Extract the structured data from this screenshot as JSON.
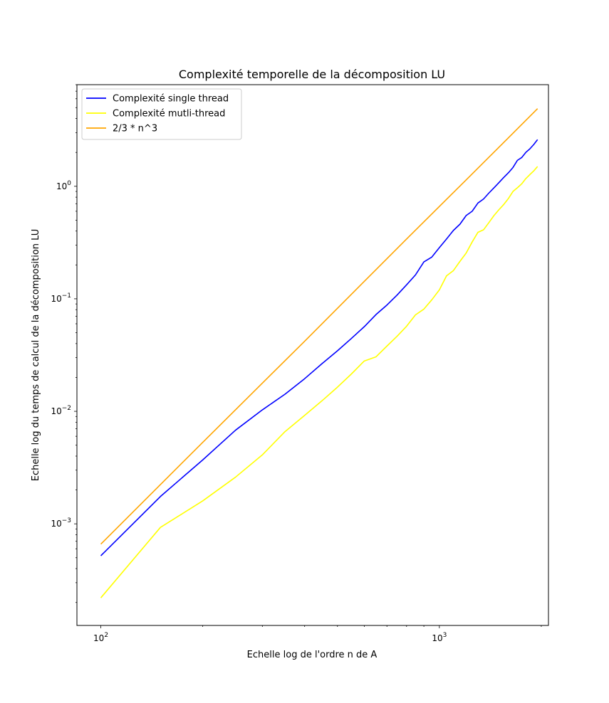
{
  "chart_data": {
    "type": "line",
    "title": "Complexité temporelle de la décomposition LU",
    "xlabel": "Echelle log de l'ordre n de A",
    "ylabel": "Echelle log du temps de calcul de la décomposition LU",
    "xscale": "log",
    "yscale": "log",
    "xlim": [
      85,
      2100
    ],
    "ylim": [
      0.000125,
      8
    ],
    "x_ticks": [
      {
        "base": "10",
        "exp": "2",
        "value": 100
      },
      {
        "base": "10",
        "exp": "3",
        "value": 1000
      }
    ],
    "y_ticks": [
      {
        "base": "10",
        "exp": "−3",
        "value": 0.001
      },
      {
        "base": "10",
        "exp": "−2",
        "value": 0.01
      },
      {
        "base": "10",
        "exp": "−1",
        "value": 0.1
      },
      {
        "base": "10",
        "exp": "0",
        "value": 1
      }
    ],
    "grid": false,
    "legend_position": "upper-left",
    "series": [
      {
        "name": "Complexité single thread",
        "color": "#0000ff",
        "x": [
          100,
          150,
          200,
          250,
          300,
          350,
          400,
          450,
          500,
          550,
          600,
          650,
          700,
          750,
          800,
          850,
          900,
          950,
          1000,
          1050,
          1100,
          1150,
          1200,
          1250,
          1300,
          1350,
          1400,
          1450,
          1500,
          1550,
          1600,
          1650,
          1700,
          1750,
          1800,
          1850,
          1900,
          1950
        ],
        "values": [
          0.00052,
          0.00175,
          0.0037,
          0.0068,
          0.0103,
          0.0142,
          0.0195,
          0.0265,
          0.0345,
          0.0445,
          0.0565,
          0.0725,
          0.088,
          0.108,
          0.133,
          0.163,
          0.213,
          0.235,
          0.285,
          0.34,
          0.405,
          0.46,
          0.55,
          0.6,
          0.71,
          0.77,
          0.87,
          0.97,
          1.08,
          1.2,
          1.32,
          1.47,
          1.7,
          1.8,
          2.0,
          2.15,
          2.35,
          2.6
        ]
      },
      {
        "name": "Complexité mutli-thread",
        "color": "#ffff00",
        "x": [
          100,
          150,
          200,
          250,
          300,
          350,
          400,
          450,
          500,
          550,
          600,
          650,
          700,
          750,
          800,
          850,
          900,
          950,
          1000,
          1050,
          1100,
          1150,
          1200,
          1250,
          1300,
          1350,
          1400,
          1450,
          1500,
          1550,
          1600,
          1650,
          1700,
          1750,
          1800,
          1850,
          1900,
          1950
        ],
        "values": [
          0.00022,
          0.00093,
          0.0016,
          0.0026,
          0.0041,
          0.0066,
          0.0092,
          0.0124,
          0.0164,
          0.0215,
          0.028,
          0.0305,
          0.038,
          0.0465,
          0.057,
          0.072,
          0.081,
          0.098,
          0.12,
          0.16,
          0.178,
          0.215,
          0.255,
          0.32,
          0.39,
          0.41,
          0.475,
          0.55,
          0.62,
          0.69,
          0.78,
          0.9,
          0.97,
          1.05,
          1.17,
          1.27,
          1.37,
          1.5
        ]
      },
      {
        "name": "2/3 * n^3",
        "color": "#ffa500",
        "x": [
          100,
          200,
          400,
          800,
          1200,
          1600,
          1950
        ],
        "values": [
          0.00066,
          0.0053,
          0.042,
          0.34,
          1.14,
          2.7,
          4.9
        ]
      }
    ]
  }
}
